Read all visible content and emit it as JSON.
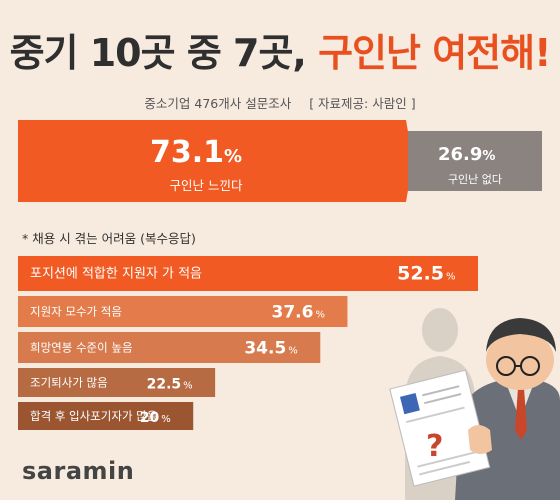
{
  "header": {
    "title_part1": "중기 10곳 중 7곳,",
    "title_part2": "구인난 여전해!",
    "survey": "중소기업 476개사 설문조사",
    "source": "[ 자료제공: 사람인 ]"
  },
  "summary": {
    "feel_value": "73.1",
    "feel_label": "구인난 느낀다",
    "none_value": "26.9",
    "none_label": "구인난 없다",
    "unit": "%"
  },
  "note": "* 채용 시 겪는 어려움 (복수응답)",
  "chart_data": {
    "type": "bar",
    "orientation": "horizontal",
    "title": "* 채용 시 겪는 어려움 (복수응답)",
    "categories": [
      "포지션에 적합한 지원자 가 적음",
      "지원자 모수가 적음",
      "희망연봉 수준이 높음",
      "조기퇴사가 많음",
      "합격 후 입사포기자가 많음"
    ],
    "values": [
      52.5,
      37.6,
      34.5,
      22.5,
      20
    ],
    "unit": "%",
    "colors": [
      "#f15a22",
      "#e37c4a",
      "#d77a4d",
      "#b76b43",
      "#9b5631"
    ]
  },
  "logo": {
    "text": "saramin"
  }
}
